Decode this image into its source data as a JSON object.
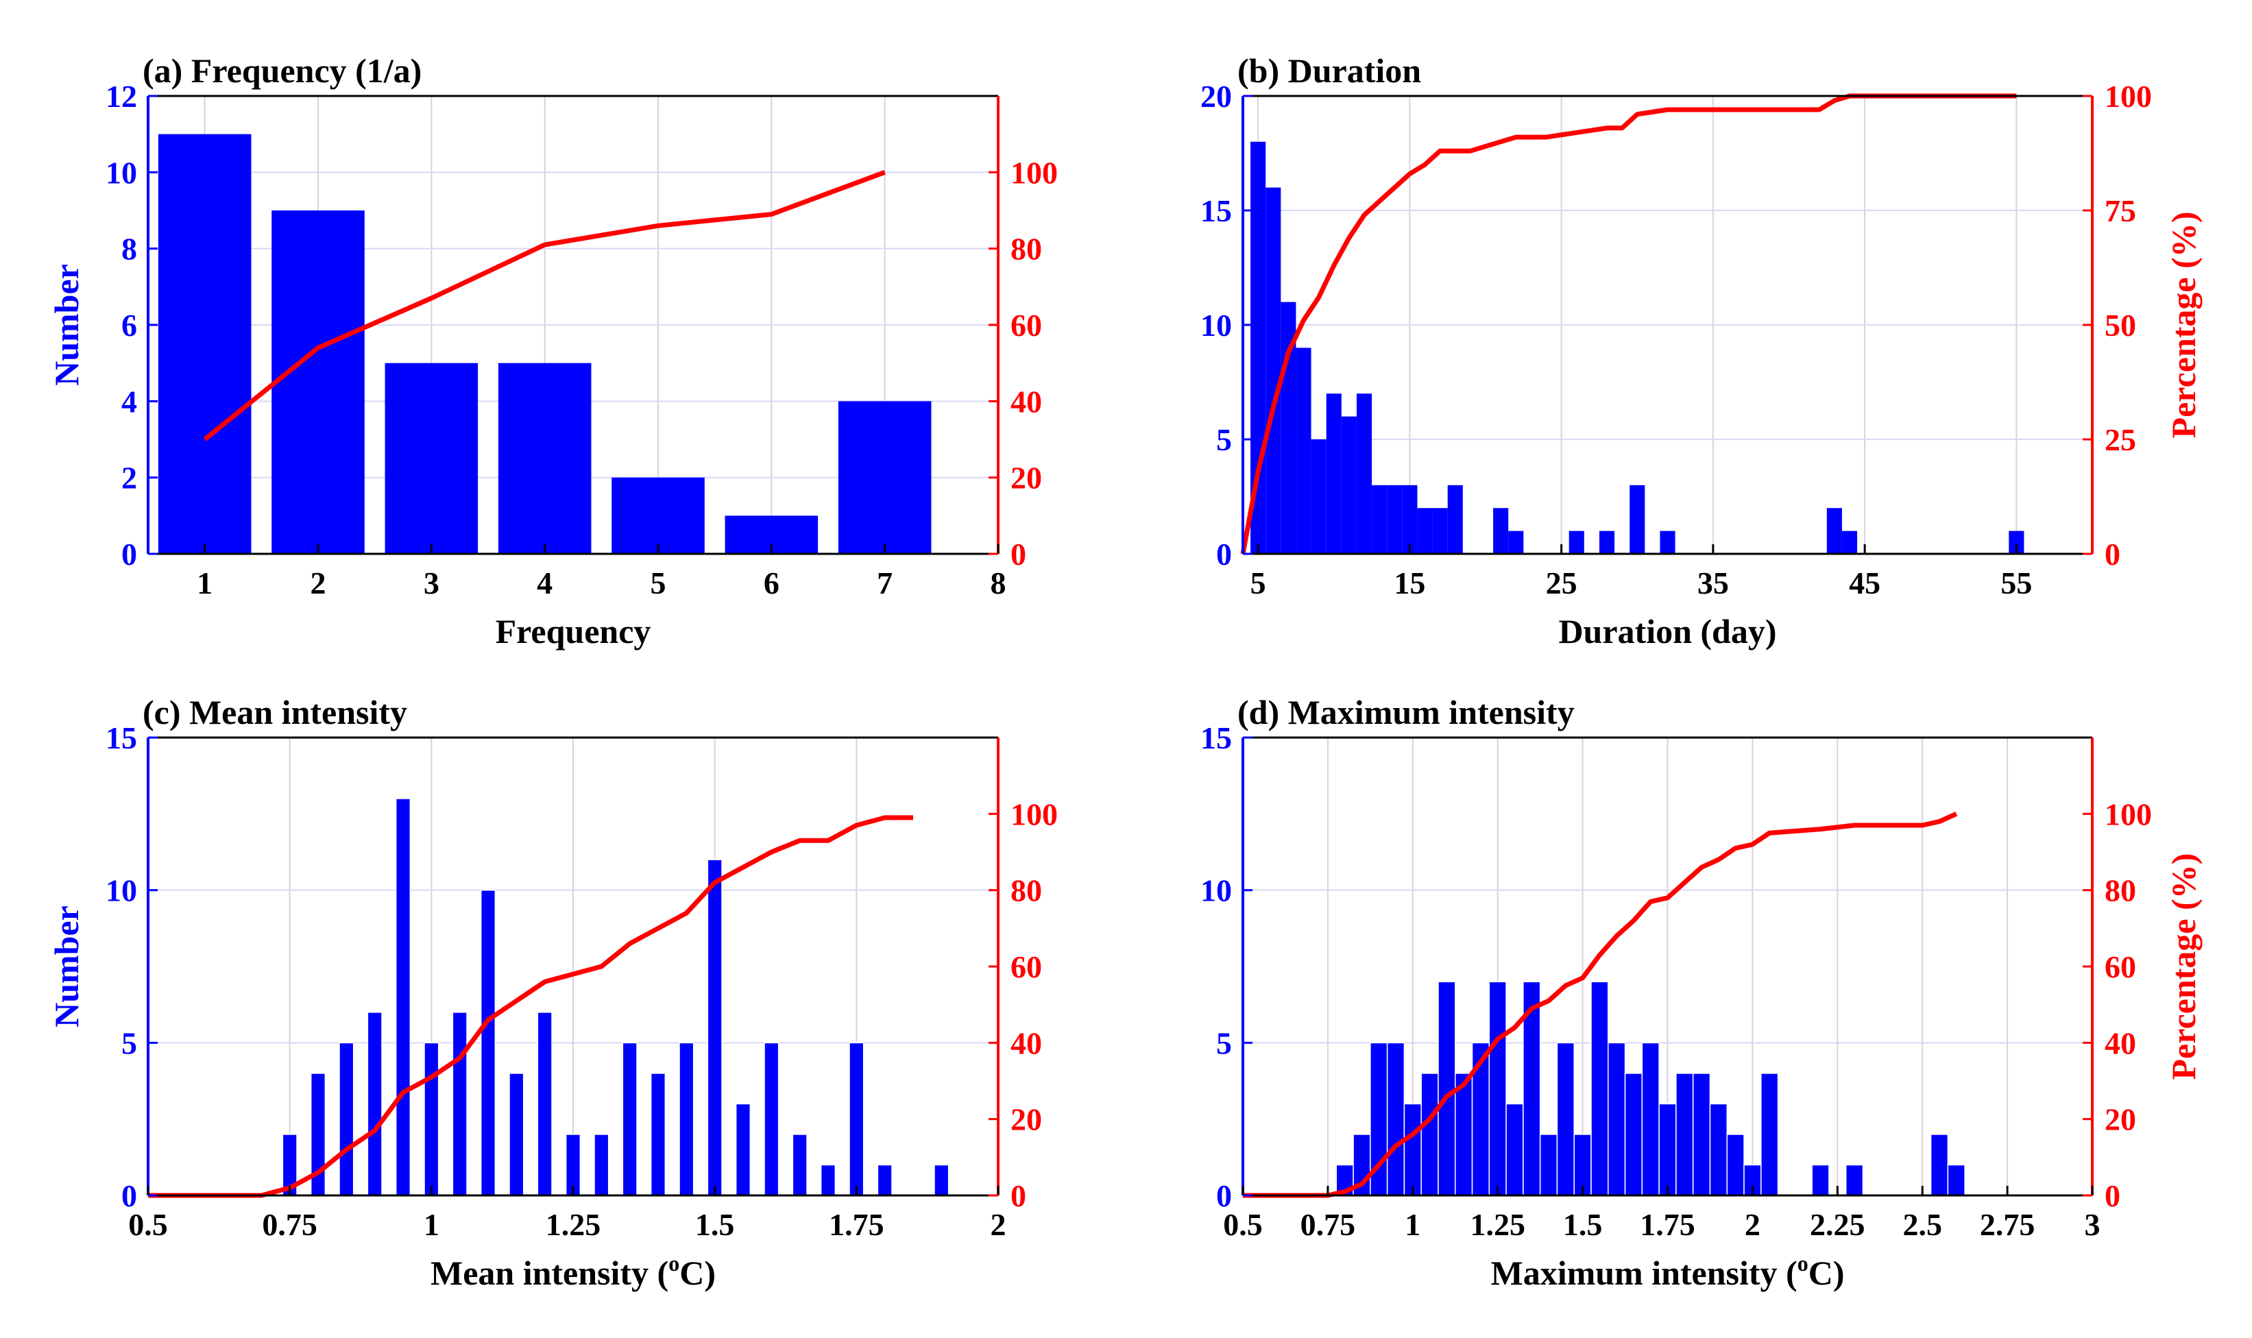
{
  "chart_data": [
    {
      "type": "bar",
      "title": "(a) Frequency (1/a)",
      "xlabel": "Frequency",
      "ylabel": "Number",
      "y2label": "",
      "xlim": [
        0.5,
        8
      ],
      "ylim": [
        0,
        12
      ],
      "y2lim": [
        0,
        120
      ],
      "xticks": [
        "1",
        "2",
        "3",
        "4",
        "5",
        "6",
        "7",
        "8"
      ],
      "yticks": [
        "0",
        "2",
        "4",
        "6",
        "8",
        "10",
        "12"
      ],
      "y2ticks": [
        "0",
        "20",
        "40",
        "60",
        "80",
        "100"
      ],
      "bar_width": 0.82,
      "bars": {
        "x": [
          1,
          2,
          3,
          4,
          5,
          6,
          7
        ],
        "values": [
          11,
          9,
          5,
          5,
          2,
          1,
          4
        ]
      },
      "line": {
        "name": "Cumulative percentage",
        "x": [
          1,
          2,
          3,
          4,
          5,
          6,
          7
        ],
        "y": [
          30,
          54,
          67,
          81,
          86,
          89,
          100
        ]
      }
    },
    {
      "type": "bar",
      "title": "(b) Duration",
      "xlabel": "Duration (day)",
      "ylabel": "",
      "y2label": "Percentage (%)",
      "xlim": [
        4,
        60
      ],
      "ylim": [
        0,
        20
      ],
      "y2lim": [
        0,
        100
      ],
      "xticks": [
        "5",
        "15",
        "25",
        "35",
        "45",
        "55"
      ],
      "yticks": [
        "0",
        "5",
        "10",
        "15",
        "20"
      ],
      "y2ticks": [
        "0",
        "25",
        "50",
        "75",
        "100"
      ],
      "bar_width": 1,
      "bars": {
        "x": [
          5,
          6,
          7,
          8,
          9,
          10,
          11,
          12,
          13,
          14,
          15,
          16,
          17,
          18,
          21,
          22,
          26,
          28,
          30,
          32,
          43,
          44,
          55
        ],
        "values": [
          18,
          16,
          11,
          9,
          5,
          7,
          6,
          7,
          3,
          3,
          3,
          2,
          2,
          3,
          2,
          1,
          1,
          1,
          3,
          1,
          2,
          1,
          1
        ]
      },
      "line": {
        "name": "Cumulative percentage",
        "x": [
          4,
          5,
          6,
          7,
          8,
          9,
          10,
          11,
          12,
          13,
          14,
          15,
          16,
          17,
          18,
          19,
          20,
          21,
          22,
          24,
          26,
          28,
          29,
          30,
          32,
          35,
          42,
          43,
          44,
          55
        ],
        "y": [
          0,
          18,
          32,
          44,
          51,
          56,
          63,
          69,
          74,
          77,
          80,
          83,
          85,
          88,
          88,
          88,
          89,
          90,
          91,
          91,
          92,
          93,
          93,
          96,
          97,
          97,
          97,
          99,
          100,
          100
        ]
      }
    },
    {
      "type": "bar",
      "title": "(c) Mean intensity",
      "xlabel": "Mean intensity (oC)",
      "ylabel": "Number",
      "y2label": "",
      "xlim": [
        0.5,
        2
      ],
      "ylim": [
        0,
        15
      ],
      "y2lim": [
        0,
        120
      ],
      "xticks": [
        "0.5",
        "0.75",
        "1",
        "1.25",
        "1.5",
        "1.75",
        "2"
      ],
      "yticks": [
        "0",
        "5",
        "10",
        "15"
      ],
      "y2ticks": [
        "0",
        "20",
        "40",
        "60",
        "80",
        "100"
      ],
      "bar_width": 0.025,
      "bars": {
        "x": [
          0.75,
          0.8,
          0.85,
          0.9,
          0.95,
          1.0,
          1.05,
          1.1,
          1.15,
          1.2,
          1.25,
          1.3,
          1.35,
          1.4,
          1.45,
          1.5,
          1.55,
          1.6,
          1.65,
          1.7,
          1.75,
          1.8,
          1.9
        ],
        "values": [
          2,
          4,
          5,
          6,
          13,
          5,
          6,
          10,
          4,
          6,
          2,
          2,
          5,
          4,
          5,
          11,
          3,
          5,
          2,
          1,
          5,
          1,
          1
        ]
      },
      "line": {
        "name": "Cumulative percentage",
        "x": [
          0.5,
          0.7,
          0.75,
          0.8,
          0.85,
          0.9,
          0.95,
          1.0,
          1.05,
          1.1,
          1.15,
          1.2,
          1.25,
          1.3,
          1.35,
          1.4,
          1.45,
          1.5,
          1.55,
          1.6,
          1.65,
          1.7,
          1.75,
          1.8,
          1.85
        ],
        "y": [
          0,
          0,
          2,
          6,
          12,
          17,
          27,
          31,
          36,
          46,
          51,
          56,
          58,
          60,
          66,
          70,
          74,
          82,
          86,
          90,
          93,
          93,
          97,
          99,
          99
        ]
      }
    },
    {
      "type": "bar",
      "title": "(d) Maximum intensity",
      "xlabel": "Maximum intensity (oC)",
      "ylabel": "",
      "y2label": "Percentage (%)",
      "xlim": [
        0.5,
        3
      ],
      "ylim": [
        0,
        15
      ],
      "y2lim": [
        0,
        120
      ],
      "xticks": [
        "0.5",
        "0.75",
        "1",
        "1.25",
        "1.5",
        "1.75",
        "2",
        "2.25",
        "2.5",
        "2.75",
        "3"
      ],
      "yticks": [
        "0",
        "5",
        "10",
        "15"
      ],
      "y2ticks": [
        "0",
        "20",
        "40",
        "60",
        "80",
        "100"
      ],
      "bar_width": 0.05,
      "bars": {
        "x": [
          0.8,
          0.85,
          0.9,
          0.95,
          1.0,
          1.05,
          1.1,
          1.15,
          1.2,
          1.25,
          1.3,
          1.35,
          1.4,
          1.45,
          1.5,
          1.55,
          1.6,
          1.65,
          1.7,
          1.75,
          1.8,
          1.85,
          1.9,
          1.95,
          2.0,
          2.05,
          2.2,
          2.3,
          2.55,
          2.6
        ],
        "values": [
          1,
          2,
          5,
          5,
          3,
          4,
          7,
          4,
          5,
          7,
          3,
          7,
          2,
          5,
          2,
          7,
          5,
          4,
          5,
          3,
          4,
          4,
          3,
          2,
          1,
          4,
          1,
          1,
          2,
          1
        ]
      },
      "line": {
        "name": "Cumulative percentage",
        "x": [
          0.5,
          0.75,
          0.8,
          0.85,
          0.9,
          0.95,
          1.0,
          1.05,
          1.1,
          1.15,
          1.2,
          1.25,
          1.3,
          1.35,
          1.4,
          1.45,
          1.5,
          1.55,
          1.6,
          1.65,
          1.7,
          1.75,
          1.8,
          1.85,
          1.9,
          1.95,
          2.0,
          2.05,
          2.2,
          2.3,
          2.5,
          2.55,
          2.6
        ],
        "y": [
          0,
          0,
          1,
          3,
          8,
          13,
          16,
          20,
          26,
          29,
          35,
          41,
          44,
          49,
          51,
          55,
          57,
          63,
          68,
          72,
          77,
          78,
          82,
          86,
          88,
          91,
          92,
          95,
          96,
          97,
          97,
          98,
          100
        ]
      }
    }
  ]
}
